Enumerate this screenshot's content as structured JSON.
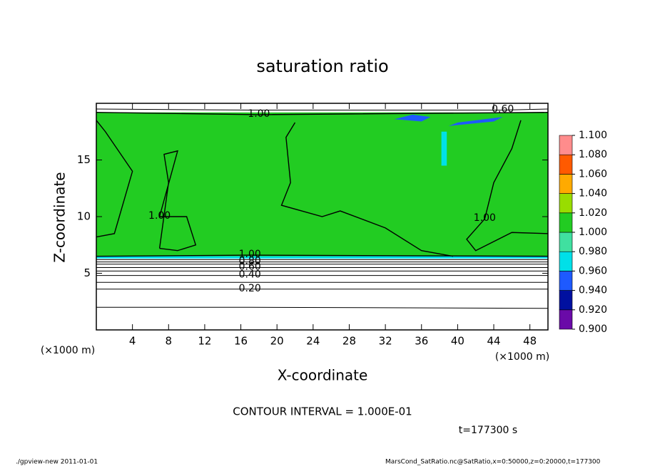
{
  "chart_data": {
    "type": "contour",
    "title": "saturation ratio",
    "xlabel": "X-coordinate",
    "ylabel": "Z-coordinate",
    "x_unit": "(×1000 m)",
    "y_unit": "(×1000 m)",
    "xlim": [
      0,
      50
    ],
    "ylim": [
      0,
      20
    ],
    "xticks": [
      4,
      8,
      12,
      16,
      20,
      24,
      28,
      32,
      36,
      40,
      44,
      48
    ],
    "yticks": [
      5,
      10,
      15
    ],
    "shading": [
      {
        "value": 1.01,
        "x": [
          0,
          50,
          50,
          0
        ],
        "y": [
          6.4,
          6.4,
          19.2,
          19.2
        ]
      },
      {
        "value": 0.97,
        "x": [
          0,
          50,
          50,
          0
        ],
        "y": [
          6.3,
          6.3,
          6.5,
          6.5
        ]
      },
      {
        "value": 0.95,
        "x": [
          33,
          36,
          37,
          35
        ],
        "y": [
          18.6,
          18.4,
          18.8,
          19.0
        ]
      },
      {
        "value": 0.95,
        "x": [
          39,
          44,
          45,
          40
        ],
        "y": [
          18.0,
          18.4,
          18.8,
          18.3
        ]
      },
      {
        "value": 0.97,
        "x": [
          38.2,
          38.8,
          38.8,
          38.2
        ],
        "y": [
          14.5,
          14.5,
          17.5,
          17.5
        ]
      }
    ],
    "contours": [
      {
        "level": 0.1,
        "x": [
          0,
          17,
          50
        ],
        "y": [
          2.0,
          2.0,
          1.9
        ]
      },
      {
        "level": 0.2,
        "label": "0.20",
        "x": [
          0,
          17,
          50
        ],
        "y": [
          3.6,
          3.6,
          3.6
        ]
      },
      {
        "level": 0.3,
        "x": [
          0,
          17,
          50
        ],
        "y": [
          4.2,
          4.2,
          4.2
        ]
      },
      {
        "level": 0.4,
        "label": "0.40",
        "x": [
          0,
          17,
          50
        ],
        "y": [
          4.8,
          4.8,
          4.8
        ]
      },
      {
        "level": 0.5,
        "x": [
          0,
          17,
          50
        ],
        "y": [
          5.2,
          5.2,
          5.2
        ]
      },
      {
        "level": 0.6,
        "label": "0.60",
        "x": [
          0,
          17,
          50
        ],
        "y": [
          5.5,
          5.5,
          5.5
        ]
      },
      {
        "level": 0.7,
        "x": [
          0,
          17,
          50
        ],
        "y": [
          5.8,
          5.8,
          5.8
        ]
      },
      {
        "level": 0.8,
        "label": "0.80",
        "x": [
          0,
          17,
          50
        ],
        "y": [
          6.0,
          6.0,
          6.0
        ]
      },
      {
        "level": 0.9,
        "x": [
          0,
          17,
          50
        ],
        "y": [
          6.2,
          6.2,
          6.2
        ]
      },
      {
        "level": 1.0,
        "label": "1.00",
        "x": [
          0,
          17,
          50
        ],
        "y": [
          6.5,
          6.6,
          6.5
        ]
      },
      {
        "level": 1.0,
        "label": "1.00",
        "x": [
          0,
          18,
          50
        ],
        "y": [
          19.2,
          19.0,
          19.2
        ]
      },
      {
        "level": 0.6,
        "label": "0.60",
        "x": [
          0,
          17,
          45,
          50
        ],
        "y": [
          19.5,
          19.4,
          19.4,
          19.5
        ]
      },
      {
        "level": 1.0,
        "label": "1.00",
        "x": [
          7,
          8,
          7.5,
          9,
          7,
          10,
          11,
          9,
          7
        ],
        "y": [
          7.2,
          13,
          15.5,
          15.8,
          10,
          10,
          7.5,
          7,
          7.2
        ]
      },
      {
        "level": 1.0,
        "x": [
          22,
          21,
          21.5,
          20.5,
          25,
          27,
          32,
          36,
          39.5
        ],
        "y": [
          18.3,
          17,
          13,
          11,
          10,
          10.5,
          9,
          7,
          6.5
        ]
      },
      {
        "level": 1.0,
        "label": "1.00",
        "x": [
          50,
          46,
          42,
          41,
          43,
          44,
          46,
          47
        ],
        "y": [
          8.5,
          8.6,
          7,
          8,
          9.8,
          13,
          16,
          18.5
        ]
      },
      {
        "level": 1.0,
        "x": [
          0,
          2,
          4,
          1,
          0
        ],
        "y": [
          8.2,
          8.5,
          14,
          17.5,
          18.5
        ]
      }
    ],
    "colorbar": {
      "levels": [
        {
          "value": 0.9,
          "label": "0.900"
        },
        {
          "value": 0.92,
          "label": "0.920"
        },
        {
          "value": 0.94,
          "label": "0.940"
        },
        {
          "value": 0.96,
          "label": "0.960"
        },
        {
          "value": 0.98,
          "label": "0.980"
        },
        {
          "value": 1.0,
          "label": "1.000"
        },
        {
          "value": 1.02,
          "label": "1.020"
        },
        {
          "value": 1.04,
          "label": "1.040"
        },
        {
          "value": 1.06,
          "label": "1.060"
        },
        {
          "value": 1.08,
          "label": "1.080"
        },
        {
          "value": 1.1,
          "label": "1.100"
        }
      ],
      "colors": [
        "#6a0aa8",
        "#0010a0",
        "#1e5aff",
        "#00e0e8",
        "#40e0a0",
        "#22cc22",
        "#99dd00",
        "#ffaa00",
        "#ff5a00",
        "#ff8c8c"
      ]
    },
    "contour_interval": "CONTOUR INTERVAL = 1.000E-01",
    "time": "t=177300 s",
    "footer_left": "./gpview-new  2011-01-01",
    "footer_right": "MarsCond_SatRatio.nc@SatRatio,x=0:50000,z=0:20000,t=177300"
  }
}
